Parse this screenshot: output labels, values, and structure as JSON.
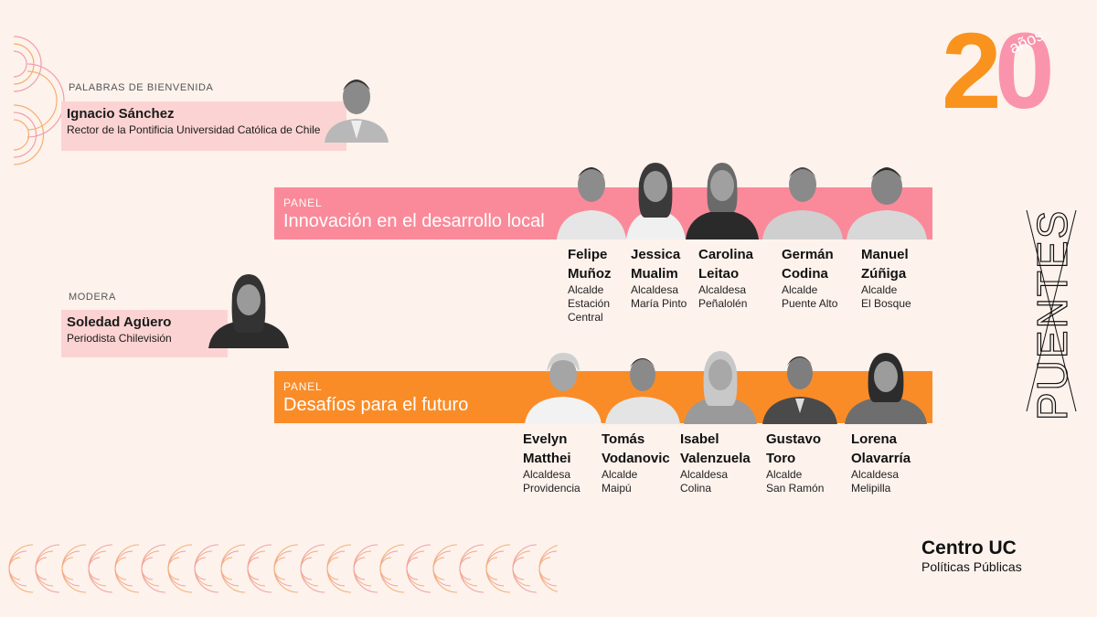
{
  "welcome": {
    "label": "PALABRAS DE BIENVENIDA",
    "name": "Ignacio Sánchez",
    "role": "Rector de la Pontificia Universidad Católica de Chile"
  },
  "moderator": {
    "label": "MODERA",
    "name": "Soledad Agüero",
    "role": "Periodista Chilevisión"
  },
  "panel1": {
    "label": "PANEL",
    "title": "Innovación en el desarrollo local",
    "color": "#fa8a9a",
    "people": [
      {
        "first": "Felipe",
        "last": "Muñoz",
        "role": "Alcalde",
        "place1": "Estación",
        "place2": "Central"
      },
      {
        "first": "Jessica",
        "last": "Mualim",
        "role": "Alcaldesa",
        "place1": "María Pinto",
        "place2": ""
      },
      {
        "first": "Carolina",
        "last": "Leitao",
        "role": "Alcaldesa",
        "place1": "Peñalolén",
        "place2": ""
      },
      {
        "first": "Germán",
        "last": "Codina",
        "role": "Alcalde",
        "place1": "Puente Alto",
        "place2": ""
      },
      {
        "first": "Manuel",
        "last": "Zúñiga",
        "role": "Alcalde",
        "place1": "El Bosque",
        "place2": ""
      }
    ]
  },
  "panel2": {
    "label": "PANEL",
    "title": "Desafíos para el futuro",
    "color": "#fa8c28",
    "people": [
      {
        "first": "Evelyn",
        "last": "Matthei",
        "role": "Alcaldesa",
        "place1": "Providencia"
      },
      {
        "first": "Tomás",
        "last": "Vodanovic",
        "role": "Alcalde",
        "place1": "Maipú"
      },
      {
        "first": "Isabel",
        "last": "Valenzuela",
        "role": "Alcaldesa",
        "place1": "Colina"
      },
      {
        "first": "Gustavo",
        "last": "Toro",
        "role": "Alcalde",
        "place1": "San Ramón"
      },
      {
        "first": "Lorena",
        "last": "Olavarría",
        "role": "Alcaldesa",
        "place1": "Melipilla"
      }
    ]
  },
  "anniversary": {
    "number_2": "2",
    "number_0": "0",
    "word": "años"
  },
  "side_title": "PUENTES",
  "logo": {
    "line1": "Centro UC",
    "line2": "Políticas Públicas"
  },
  "colors": {
    "background": "#fdf2ec",
    "pink": "#fa8a9a",
    "orange": "#fa8c28",
    "light_pink": "#fcd3d3"
  }
}
